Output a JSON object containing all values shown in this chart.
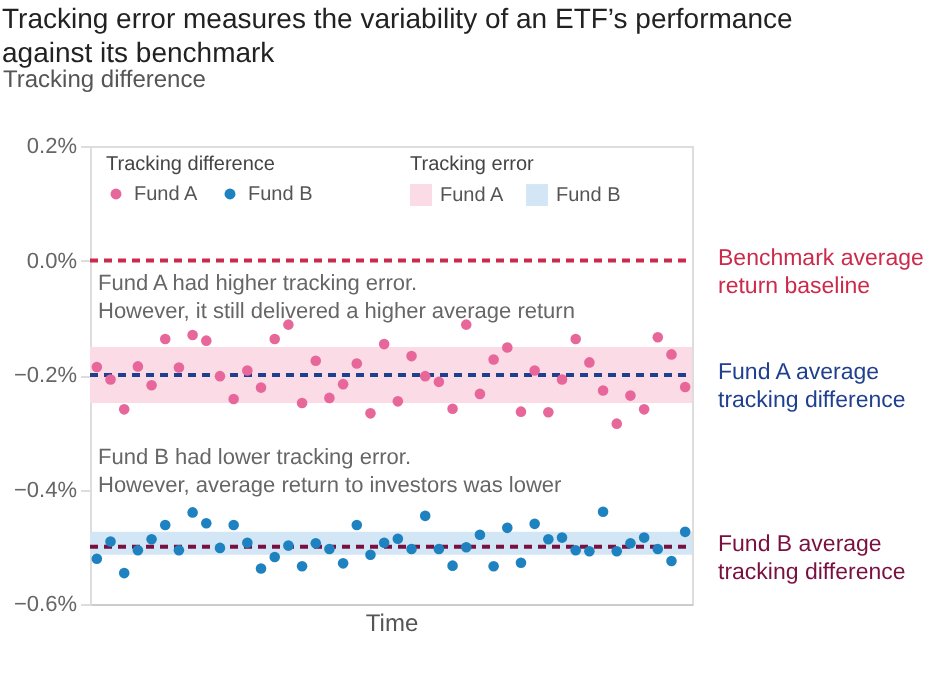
{
  "chart_data": {
    "type": "scatter",
    "title": "Tracking error measures the variability of an ETF’s performance against its benchmark",
    "ylabel": "Tracking difference",
    "xlabel": "Time",
    "legend_title": "Tracking difference",
    "categories": [
      null,
      null,
      null,
      null,
      null,
      null,
      null,
      null,
      null,
      null,
      null,
      null,
      null,
      null,
      null,
      null,
      null,
      null,
      null,
      null,
      null,
      null,
      null,
      null,
      null,
      null,
      null,
      null,
      null,
      null,
      null,
      null,
      null,
      null,
      null,
      null,
      null,
      null,
      null,
      null,
      null,
      null,
      null,
      null
    ],
    "series": [
      {
        "name": "Fund A",
        "color": "#e8679a",
        "values": [
          -0.186,
          -0.208,
          -0.26,
          -0.185,
          -0.218,
          -0.137,
          -0.187,
          -0.13,
          -0.14,
          -0.202,
          -0.242,
          -0.192,
          -0.222,
          -0.137,
          -0.112,
          -0.249,
          -0.175,
          -0.24,
          -0.216,
          -0.18,
          -0.267,
          -0.146,
          -0.246,
          -0.167,
          -0.202,
          -0.212,
          -0.259,
          -0.112,
          -0.233,
          -0.173,
          -0.152,
          -0.264,
          -0.192,
          -0.265,
          -0.208,
          -0.137,
          -0.178,
          -0.227,
          -0.285,
          -0.236,
          -0.26,
          -0.134,
          -0.164,
          -0.221
        ]
      },
      {
        "name": "Fund B",
        "color": "#1f82c0",
        "values": [
          -0.521,
          -0.491,
          -0.546,
          -0.506,
          -0.487,
          -0.462,
          -0.506,
          -0.44,
          -0.459,
          -0.502,
          -0.462,
          -0.493,
          -0.538,
          -0.518,
          -0.498,
          -0.534,
          -0.494,
          -0.504,
          -0.529,
          -0.462,
          -0.514,
          -0.493,
          -0.486,
          -0.504,
          -0.446,
          -0.504,
          -0.533,
          -0.501,
          -0.479,
          -0.534,
          -0.467,
          -0.528,
          -0.46,
          -0.487,
          -0.484,
          -0.506,
          -0.508,
          -0.439,
          -0.508,
          -0.494,
          -0.484,
          -0.504,
          -0.525,
          -0.474
        ]
      }
    ],
    "ylim": [
      -0.6,
      0.2
    ],
    "yticks": [
      {
        "value": 0.2,
        "label": "0.2%"
      },
      {
        "value": 0,
        "label": "0.0%"
      },
      {
        "value": -0.2,
        "label": "−0.2%"
      },
      {
        "value": -0.4,
        "label": "−0.4%"
      },
      {
        "value": -0.6,
        "label": "−0.6%"
      }
    ],
    "bands": [
      {
        "axis": "y",
        "from": -0.249,
        "to": -0.151,
        "label": "Fund A",
        "color": "#fadbe6"
      },
      {
        "axis": "y",
        "from": -0.514,
        "to": -0.474,
        "label": "Fund B",
        "color": "#d3e6f5"
      }
    ],
    "ref_lines": [
      {
        "axis": "y",
        "value": 0,
        "label": "Benchmark average\nreturn baseline",
        "color": "#cc2a4a",
        "line_style": "dashed"
      },
      {
        "axis": "y",
        "value": -0.2,
        "label": "Fund A average\ntracking difference",
        "color": "#1f3f8f",
        "line_style": "dashed"
      },
      {
        "axis": "y",
        "value": -0.5,
        "label": "Fund B average\ntracking difference",
        "color": "#7a1040",
        "line_style": "dashed"
      }
    ],
    "annotations": [
      "Tracking error",
      "Fund A had higher tracking error.\nHowever, it still delivered a higher average return",
      "Fund B had lower tracking error.\nHowever, average return to investors was lower"
    ],
    "marker": "circle",
    "grid": false,
    "legend": "top left"
  }
}
